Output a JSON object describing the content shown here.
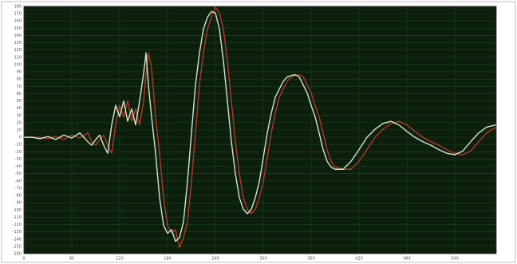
{
  "chart_data": {
    "type": "line",
    "x": [
      0,
      10,
      20,
      30,
      40,
      50,
      60,
      70,
      80,
      85,
      90,
      95,
      100,
      105,
      110,
      115,
      120,
      125,
      130,
      135,
      140,
      145,
      150,
      153,
      156,
      160,
      165,
      170,
      175,
      180,
      185,
      190,
      195,
      200,
      205,
      210,
      215,
      220,
      225,
      230,
      235,
      240,
      245,
      250,
      255,
      260,
      265,
      270,
      275,
      280,
      285,
      290,
      295,
      300,
      305,
      310,
      315,
      320,
      325,
      330,
      335,
      340,
      345,
      350,
      355,
      360,
      365,
      370,
      375,
      380,
      385,
      390,
      400,
      410,
      420,
      430,
      440,
      450,
      460,
      470,
      480,
      490,
      500,
      510,
      520,
      530,
      540,
      550,
      560,
      570,
      580,
      592
    ],
    "series": [
      {
        "color": "#d4e6cc",
        "values": [
          0,
          0,
          -2,
          1,
          -3,
          3,
          -1,
          6,
          -6,
          -11,
          -3,
          3,
          -11,
          -22,
          17,
          44,
          28,
          50,
          22,
          39,
          17,
          50,
          88,
          116,
          72,
          28,
          -22,
          -83,
          -121,
          -132,
          -127,
          -143,
          -138,
          -116,
          -61,
          6,
          72,
          116,
          149,
          165,
          173,
          171,
          149,
          105,
          50,
          -6,
          -50,
          -83,
          -99,
          -105,
          -99,
          -83,
          -61,
          -28,
          6,
          33,
          55,
          66,
          77,
          83,
          85,
          86,
          83,
          72,
          61,
          44,
          28,
          6,
          -17,
          -33,
          -41,
          -44,
          -44,
          -33,
          -17,
          0,
          11,
          19,
          22,
          17,
          8,
          0,
          -6,
          -11,
          -17,
          -22,
          -24,
          -19,
          -6,
          6,
          14,
          17
        ]
      },
      {
        "color": "#b3372c",
        "values": [
          0,
          0,
          0,
          -2,
          1,
          -3,
          3,
          -1,
          6,
          -6,
          -11,
          -3,
          3,
          -11,
          -22,
          17,
          44,
          28,
          50,
          22,
          39,
          17,
          50,
          88,
          116,
          95,
          28,
          -22,
          -83,
          -121,
          -132,
          -127,
          -152,
          -138,
          -116,
          -61,
          6,
          72,
          116,
          149,
          165,
          179,
          171,
          149,
          105,
          50,
          -6,
          -50,
          -83,
          -99,
          -105,
          -99,
          -83,
          -61,
          -28,
          6,
          33,
          55,
          66,
          77,
          83,
          85,
          86,
          83,
          72,
          61,
          44,
          28,
          6,
          -17,
          -33,
          -41,
          -44,
          -44,
          -33,
          -17,
          0,
          11,
          19,
          22,
          17,
          8,
          0,
          -6,
          -11,
          -17,
          -22,
          -24,
          -19,
          -6,
          6,
          14
        ]
      }
    ],
    "xlim": [
      0,
      592
    ],
    "xticks": [
      0,
      60,
      120,
      180,
      240,
      300,
      360,
      420,
      480,
      540
    ],
    "ylim": [
      -160,
      180
    ],
    "yticks": [
      -160,
      -150,
      -140,
      -130,
      -120,
      -110,
      -100,
      -90,
      -80,
      -70,
      -60,
      -50,
      -40,
      -30,
      -20,
      -10,
      0,
      10,
      20,
      30,
      40,
      50,
      60,
      70,
      80,
      90,
      100,
      110,
      120,
      130,
      140,
      150,
      160,
      170,
      180
    ],
    "grid": true,
    "background": "#0c1e0c",
    "grid_color": "#1f4420"
  }
}
